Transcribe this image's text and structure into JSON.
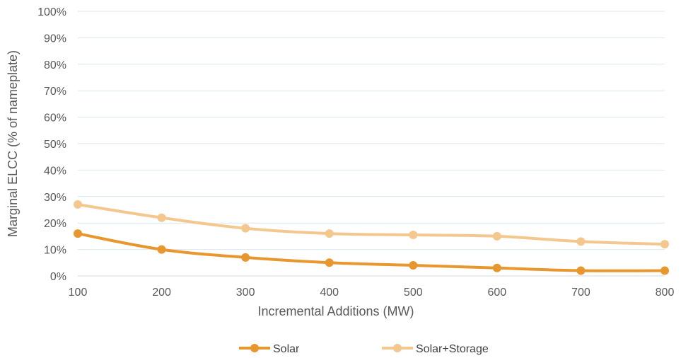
{
  "chart_data": {
    "type": "line",
    "title": "",
    "xlabel": "Incremental Additions (MW)",
    "ylabel": "Marginal ELCC (% of nameplate)",
    "x": [
      100,
      200,
      300,
      400,
      500,
      600,
      700,
      800
    ],
    "xlim": [
      100,
      800
    ],
    "ylim": [
      0,
      100
    ],
    "y_ticks": [
      "0%",
      "10%",
      "20%",
      "30%",
      "40%",
      "50%",
      "60%",
      "70%",
      "80%",
      "90%",
      "100%"
    ],
    "x_ticks": [
      "100",
      "200",
      "300",
      "400",
      "500",
      "600",
      "700",
      "800"
    ],
    "grid": true,
    "legend_position": "bottom",
    "series": [
      {
        "name": "Solar",
        "color": "#e8962e",
        "values": [
          16,
          10,
          7,
          5,
          4,
          3,
          2,
          2
        ]
      },
      {
        "name": "Solar+Storage",
        "color": "#f4c78f",
        "values": [
          27,
          22,
          18,
          16,
          15.5,
          15,
          13,
          12
        ]
      }
    ]
  }
}
